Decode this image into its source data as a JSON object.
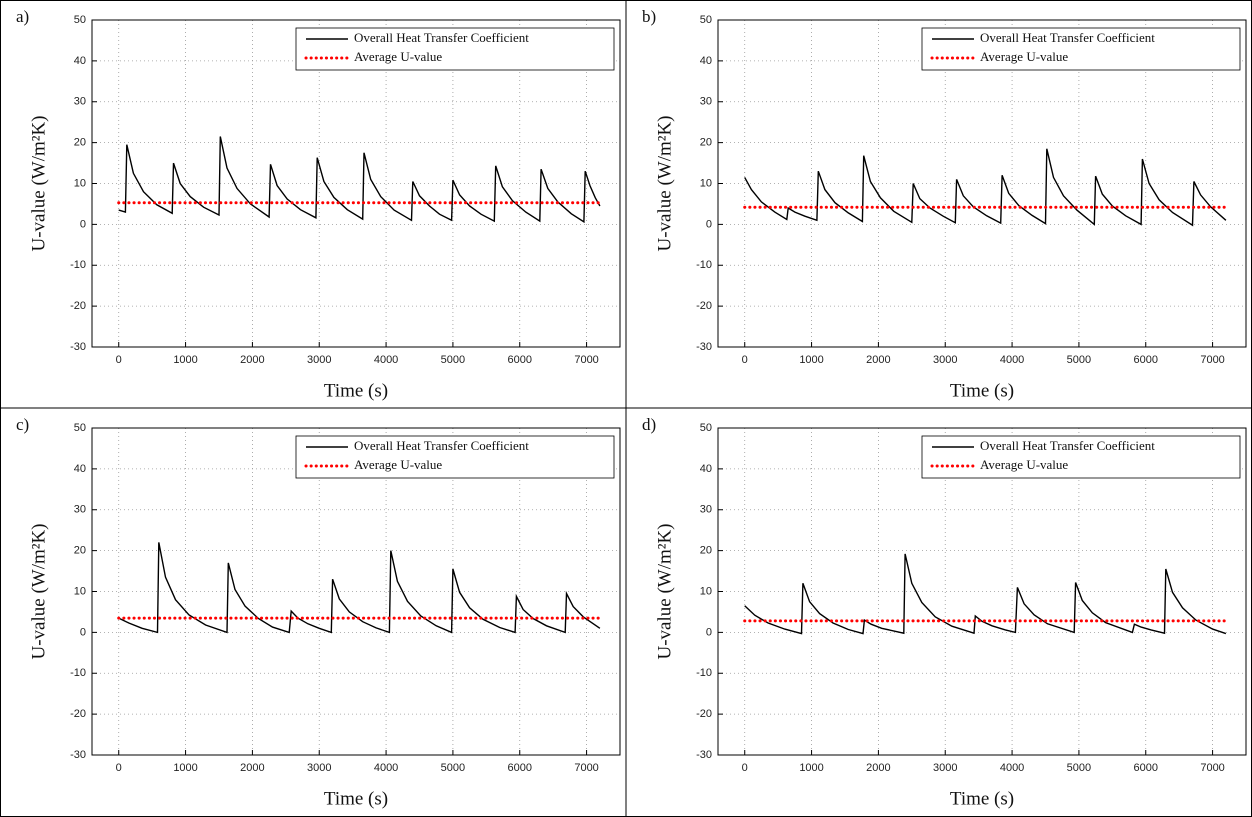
{
  "chart_data": [
    {
      "type": "line",
      "label": "a)",
      "xlabel": "Time (s)",
      "ylabel": "U-value (W/m²K)",
      "xlim": [
        -400,
        7500
      ],
      "ylim": [
        -30,
        50
      ],
      "xticks": [
        0,
        1000,
        2000,
        3000,
        4000,
        5000,
        6000,
        7000
      ],
      "yticks": [
        -30,
        -20,
        -10,
        0,
        10,
        20,
        30,
        40,
        50
      ],
      "grid": true,
      "legend": "upper right",
      "series": [
        {
          "name": "Overall Heat Transfer Coefficient",
          "color": "#000000",
          "linestyle": "solid",
          "x": [
            0,
            100,
            120,
            220,
            370,
            570,
            800,
            820,
            920,
            1070,
            1270,
            1500,
            1520,
            1620,
            1770,
            1970,
            2250,
            2270,
            2370,
            2520,
            2720,
            2950,
            2970,
            3070,
            3220,
            3420,
            3650,
            3670,
            3770,
            3920,
            4120,
            4380,
            4400,
            4500,
            4650,
            4800,
            4980,
            5000,
            5100,
            5250,
            5420,
            5620,
            5640,
            5740,
            5890,
            6090,
            6300,
            6320,
            6420,
            6570,
            6770,
            6960,
            6980,
            7050,
            7130,
            7200
          ],
          "values": [
            3.5,
            3.0,
            19.5,
            12.5,
            8.0,
            4.8,
            2.7,
            15,
            10,
            6.8,
            4.2,
            2.3,
            21.5,
            13.8,
            8.8,
            5.0,
            1.8,
            14.7,
            9.5,
            6.2,
            3.6,
            1.6,
            16.3,
            10.5,
            6.6,
            3.6,
            1.3,
            17.5,
            11,
            6.8,
            3.5,
            1.0,
            10.5,
            7,
            4.5,
            2.5,
            1.0,
            10.8,
            7.2,
            4.5,
            2.5,
            0.8,
            14.3,
            9.2,
            5.8,
            3,
            0.8,
            13.5,
            8.8,
            5.5,
            2.6,
            0.6,
            13,
            9.5,
            6.5,
            4.5
          ]
        },
        {
          "name": "Average U-value",
          "color": "#ff0000",
          "linestyle": "dotted",
          "x": [
            0,
            7200
          ],
          "values": [
            5.3,
            5.3
          ]
        }
      ]
    },
    {
      "type": "line",
      "label": "b)",
      "xlabel": "Time (s)",
      "ylabel": "U-value (W/m²K)",
      "xlim": [
        -400,
        7500
      ],
      "ylim": [
        -30,
        50
      ],
      "xticks": [
        0,
        1000,
        2000,
        3000,
        4000,
        5000,
        6000,
        7000
      ],
      "yticks": [
        -30,
        -20,
        -10,
        0,
        10,
        20,
        30,
        40,
        50
      ],
      "grid": true,
      "legend": "upper right",
      "series": [
        {
          "name": "Overall Heat Transfer Coefficient",
          "color": "#000000",
          "linestyle": "solid",
          "x": [
            0,
            100,
            250,
            450,
            630,
            650,
            750,
            900,
            1080,
            1100,
            1200,
            1350,
            1550,
            1760,
            1780,
            1880,
            2030,
            2230,
            2500,
            2520,
            2620,
            2770,
            2970,
            3150,
            3170,
            3270,
            3420,
            3620,
            3830,
            3850,
            3950,
            4100,
            4300,
            4500,
            4520,
            4620,
            4770,
            4970,
            5230,
            5250,
            5350,
            5500,
            5700,
            5930,
            5950,
            6050,
            6200,
            6400,
            6700,
            6720,
            6820,
            6970,
            7200
          ],
          "values": [
            11.5,
            8.5,
            5.5,
            3.0,
            1.2,
            4.0,
            3.0,
            2.0,
            1.0,
            13,
            8.5,
            5.3,
            2.8,
            0.7,
            16.8,
            10.5,
            6.5,
            3.2,
            0.5,
            10,
            6.3,
            4,
            2,
            0.4,
            11,
            7,
            4.3,
            2.1,
            0.3,
            12,
            7.6,
            4.6,
            2.2,
            0.2,
            18.5,
            11.5,
            7,
            3.5,
            0,
            11.8,
            7.4,
            4.5,
            2.1,
            0,
            16,
            10,
            6,
            2.9,
            -0.2,
            10.5,
            7.2,
            4.3,
            1.0
          ]
        },
        {
          "name": "Average U-value",
          "color": "#ff0000",
          "linestyle": "dotted",
          "x": [
            0,
            7200
          ],
          "values": [
            4.2,
            4.2
          ]
        }
      ]
    },
    {
      "type": "line",
      "label": "c)",
      "xlabel": "Time (s)",
      "ylabel": "U-value (W/m²K)",
      "xlim": [
        -400,
        7500
      ],
      "ylim": [
        -30,
        50
      ],
      "xticks": [
        0,
        1000,
        2000,
        3000,
        4000,
        5000,
        6000,
        7000
      ],
      "yticks": [
        -30,
        -20,
        -10,
        0,
        10,
        20,
        30,
        40,
        50
      ],
      "grid": true,
      "legend": "upper right",
      "series": [
        {
          "name": "Overall Heat Transfer Coefficient",
          "color": "#000000",
          "linestyle": "solid",
          "x": [
            0,
            150,
            350,
            580,
            600,
            700,
            850,
            1050,
            1300,
            1620,
            1640,
            1740,
            1890,
            2090,
            2300,
            2550,
            2580,
            2680,
            2830,
            3000,
            3180,
            3200,
            3300,
            3450,
            3650,
            3850,
            4050,
            4070,
            4170,
            4320,
            4520,
            4750,
            4980,
            5000,
            5100,
            5250,
            5450,
            5700,
            5930,
            5950,
            6050,
            6200,
            6400,
            6680,
            6700,
            6800,
            6950,
            7200
          ],
          "values": [
            3.5,
            2.3,
            1.0,
            0,
            22,
            13.5,
            8,
            4.3,
            1.8,
            0,
            17,
            10.5,
            6.4,
            3.4,
            1.3,
            0,
            5.2,
            3.5,
            2.1,
            1.0,
            0,
            13,
            8.2,
            5,
            2.6,
            1.1,
            0,
            20,
            12.5,
            7.6,
            4,
            1.6,
            0,
            15.5,
            9.8,
            6,
            3.2,
            1.2,
            0,
            8.8,
            5.6,
            3.4,
            1.6,
            0,
            9.5,
            6.3,
            3.8,
            1.0
          ]
        },
        {
          "name": "Average U-value",
          "color": "#ff0000",
          "linestyle": "dotted",
          "x": [
            0,
            7200
          ],
          "values": [
            3.5,
            3.5
          ]
        }
      ]
    },
    {
      "type": "line",
      "label": "d)",
      "xlabel": "Time (s)",
      "ylabel": "U-value (W/m²K)",
      "xlim": [
        -400,
        7500
      ],
      "ylim": [
        -30,
        50
      ],
      "xticks": [
        0,
        1000,
        2000,
        3000,
        4000,
        5000,
        6000,
        7000
      ],
      "yticks": [
        -30,
        -20,
        -10,
        0,
        10,
        20,
        30,
        40,
        50
      ],
      "grid": true,
      "legend": "upper right",
      "series": [
        {
          "name": "Overall Heat Transfer Coefficient",
          "color": "#000000",
          "linestyle": "solid",
          "x": [
            0,
            150,
            350,
            600,
            850,
            870,
            970,
            1120,
            1320,
            1550,
            1770,
            1790,
            1890,
            2050,
            2380,
            2400,
            2500,
            2650,
            2850,
            3100,
            3430,
            3450,
            3550,
            3700,
            3900,
            4050,
            4080,
            4180,
            4330,
            4530,
            4930,
            4950,
            5050,
            5200,
            5400,
            5800,
            5830,
            5930,
            6080,
            6280,
            6300,
            6400,
            6550,
            6750,
            7000,
            7200
          ],
          "values": [
            6.5,
            4.2,
            2.3,
            0.8,
            -0.3,
            12,
            7.5,
            4.6,
            2.3,
            0.7,
            -0.3,
            3,
            2,
            1,
            -0.2,
            19.2,
            12,
            7.3,
            3.8,
            1.5,
            -0.2,
            4,
            2.7,
            1.6,
            0.6,
            0,
            11,
            7,
            4.3,
            2.1,
            0,
            12.2,
            7.8,
            4.8,
            2.4,
            0,
            2,
            1.3,
            0.6,
            -0.2,
            15.5,
            9.8,
            6,
            3,
            0.8,
            -0.3
          ]
        },
        {
          "name": "Average U-value",
          "color": "#ff0000",
          "linestyle": "dotted",
          "x": [
            0,
            7200
          ],
          "values": [
            2.8,
            2.8
          ]
        }
      ]
    }
  ]
}
